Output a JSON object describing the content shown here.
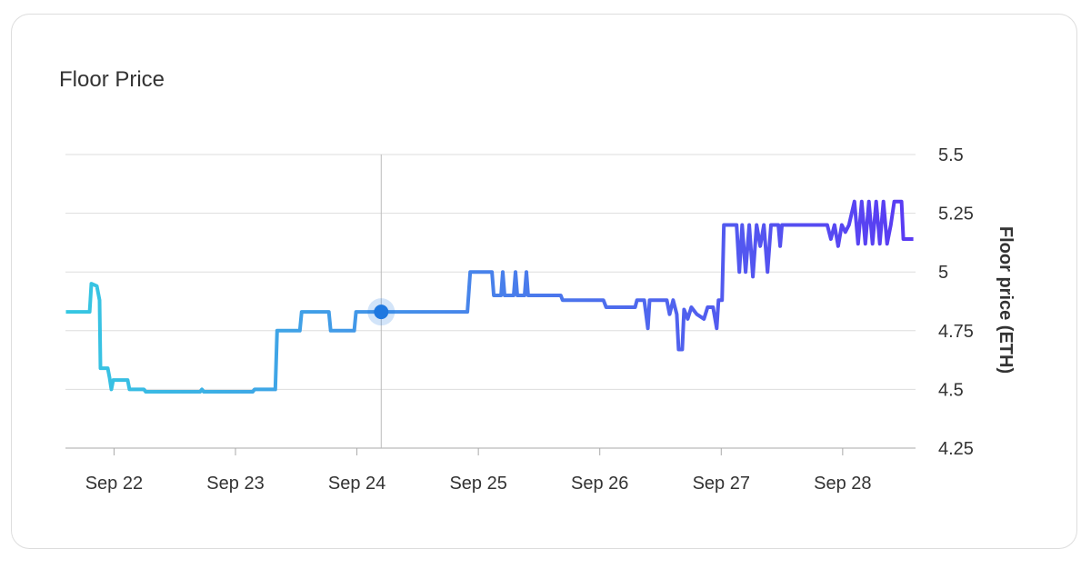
{
  "chart_data": {
    "type": "line",
    "title": "Floor Price",
    "y_label": "Floor price (ETH)",
    "x": [
      21.604,
      21.799,
      21.813,
      21.858,
      21.881,
      21.888,
      21.948,
      21.963,
      21.978,
      21.993,
      22.007,
      22.112,
      22.127,
      22.246,
      22.261,
      22.709,
      22.724,
      22.739,
      23.142,
      23.157,
      23.328,
      23.343,
      23.53,
      23.545,
      23.769,
      23.784,
      23.978,
      23.993,
      24.91,
      24.933,
      25.112,
      25.127,
      25.187,
      25.201,
      25.216,
      25.291,
      25.306,
      25.321,
      25.381,
      25.396,
      25.41,
      25.679,
      25.694,
      26.03,
      26.052,
      26.291,
      26.306,
      26.366,
      26.381,
      26.396,
      26.41,
      26.552,
      26.575,
      26.604,
      26.634,
      26.649,
      26.679,
      26.694,
      26.724,
      26.754,
      26.799,
      26.858,
      26.888,
      26.933,
      26.963,
      26.978,
      27.007,
      27.022,
      27.127,
      27.149,
      27.172,
      27.201,
      27.231,
      27.261,
      27.291,
      27.321,
      27.351,
      27.381,
      27.41,
      27.47,
      27.485,
      27.5,
      27.873,
      27.903,
      27.933,
      27.963,
      27.993,
      28.022,
      28.052,
      28.097,
      28.127,
      28.157,
      28.187,
      28.216,
      28.246,
      28.276,
      28.306,
      28.336,
      28.366,
      28.396,
      28.425,
      28.485,
      28.5,
      28.582
    ],
    "values": [
      4.83,
      4.83,
      4.95,
      4.94,
      4.88,
      4.59,
      4.59,
      4.55,
      4.5,
      4.54,
      4.54,
      4.54,
      4.5,
      4.5,
      4.49,
      4.49,
      4.5,
      4.49,
      4.49,
      4.5,
      4.5,
      4.75,
      4.75,
      4.83,
      4.83,
      4.75,
      4.75,
      4.83,
      4.83,
      5.0,
      5.0,
      4.9,
      4.9,
      5.0,
      4.9,
      4.9,
      5.0,
      4.9,
      4.9,
      5.0,
      4.9,
      4.9,
      4.88,
      4.88,
      4.85,
      4.85,
      4.88,
      4.88,
      4.82,
      4.76,
      4.88,
      4.88,
      4.82,
      4.88,
      4.82,
      4.67,
      4.67,
      4.84,
      4.8,
      4.85,
      4.82,
      4.8,
      4.85,
      4.85,
      4.76,
      4.88,
      4.88,
      5.2,
      5.2,
      5.0,
      5.2,
      5.0,
      5.2,
      4.98,
      5.2,
      5.11,
      5.2,
      5.0,
      5.2,
      5.2,
      5.11,
      5.2,
      5.2,
      5.14,
      5.2,
      5.11,
      5.2,
      5.17,
      5.2,
      5.3,
      5.12,
      5.3,
      5.12,
      5.3,
      5.12,
      5.3,
      5.12,
      5.3,
      5.12,
      5.2,
      5.3,
      5.3,
      5.14,
      5.14
    ],
    "gradient": [
      "#36c8e2",
      "#5a3af3"
    ],
    "highlight": {
      "x": 24.2,
      "y": 4.83
    },
    "highlight_color": "#1f78e0",
    "xlim": [
      21.6,
      28.6
    ],
    "xticks": [
      {
        "value": 22,
        "label": "Sep 22"
      },
      {
        "value": 23,
        "label": "Sep 23"
      },
      {
        "value": 24,
        "label": "Sep 24"
      },
      {
        "value": 25,
        "label": "Sep 25"
      },
      {
        "value": 26,
        "label": "Sep 26"
      },
      {
        "value": 27,
        "label": "Sep 27"
      },
      {
        "value": 28,
        "label": "Sep 28"
      }
    ],
    "ylim": [
      4.25,
      5.5
    ],
    "yticks": [
      4.25,
      4.5,
      4.75,
      5,
      5.25,
      5.5
    ],
    "grid": true
  }
}
